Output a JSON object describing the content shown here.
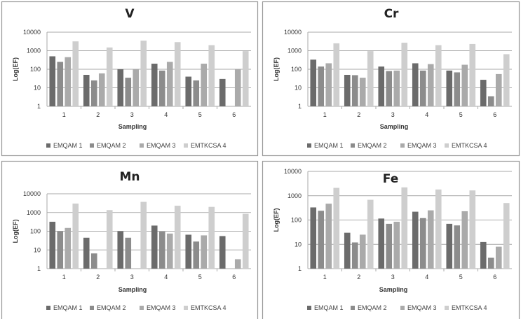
{
  "chart_data": [
    {
      "type": "bar",
      "title": "V",
      "xlabel": "Sampling",
      "ylabel": "Log(EF)",
      "yscale": "log",
      "ylim": [
        1,
        10000
      ],
      "yticks": [
        "1",
        "10",
        "100",
        "1000",
        "10000"
      ],
      "categories": [
        "1",
        "2",
        "3",
        "4",
        "5",
        "6"
      ],
      "legend_position": "bottom",
      "series": [
        {
          "name": "EMQAM 1",
          "values": [
            500,
            50,
            100,
            200,
            40,
            30
          ]
        },
        {
          "name": "EMQAM 2",
          "values": [
            250,
            25,
            35,
            85,
            25,
            null
          ]
        },
        {
          "name": "EMQAM 3",
          "values": [
            450,
            60,
            100,
            250,
            200,
            100
          ]
        },
        {
          "name": "EMTKCSA 4",
          "values": [
            3200,
            1500,
            3500,
            2900,
            2000,
            950
          ]
        }
      ]
    },
    {
      "type": "bar",
      "title": "Cr",
      "xlabel": "Sampling",
      "ylabel": "Log(EF)",
      "yscale": "log",
      "ylim": [
        1,
        10000
      ],
      "yticks": [
        "1",
        "10",
        "100",
        "1000",
        "10000"
      ],
      "categories": [
        "1",
        "2",
        "3",
        "4",
        "5",
        "6"
      ],
      "legend_position": "bottom",
      "series": [
        {
          "name": "EMQAM 1",
          "values": [
            330,
            50,
            140,
            210,
            85,
            27
          ]
        },
        {
          "name": "EMQAM 2",
          "values": [
            140,
            48,
            80,
            85,
            68,
            3.5
          ]
        },
        {
          "name": "EMQAM 3",
          "values": [
            210,
            35,
            85,
            190,
            175,
            55
          ]
        },
        {
          "name": "EMTKCSA 4",
          "values": [
            2500,
            950,
            2700,
            2000,
            2300,
            650
          ]
        }
      ]
    },
    {
      "type": "bar",
      "title": "Mn",
      "xlabel": "Sampling",
      "ylabel": "Log(EF)",
      "yscale": "log",
      "ylim": [
        1,
        10000
      ],
      "yticks": [
        "1",
        "10",
        "100",
        "1000",
        "10000"
      ],
      "categories": [
        "1",
        "2",
        "3",
        "4",
        "5",
        "6"
      ],
      "legend_position": "bottom",
      "series": [
        {
          "name": "EMQAM 1",
          "values": [
            320,
            45,
            100,
            200,
            65,
            55
          ]
        },
        {
          "name": "EMQAM 2",
          "values": [
            100,
            6.5,
            45,
            95,
            28,
            null
          ]
        },
        {
          "name": "EMQAM 3",
          "values": [
            150,
            null,
            null,
            75,
            60,
            3.2
          ]
        },
        {
          "name": "EMTKCSA 4",
          "values": [
            3000,
            1350,
            3700,
            2300,
            2000,
            850
          ]
        }
      ]
    },
    {
      "type": "bar",
      "title": "Fe",
      "xlabel": "Sampling",
      "ylabel": "Log(EF)",
      "yscale": "log",
      "ylim": [
        1,
        10000
      ],
      "yticks": [
        "1",
        "10",
        "100",
        "1000",
        "10000"
      ],
      "categories": [
        "1",
        "2",
        "3",
        "4",
        "5",
        "6"
      ],
      "legend_position": "bottom",
      "series": [
        {
          "name": "EMQAM 1",
          "values": [
            330,
            30,
            115,
            220,
            70,
            12.5
          ]
        },
        {
          "name": "EMQAM 2",
          "values": [
            240,
            12,
            70,
            120,
            60,
            2.8
          ]
        },
        {
          "name": "EMQAM 3",
          "values": [
            470,
            25,
            85,
            250,
            230,
            8
          ]
        },
        {
          "name": "EMTKCSA 4",
          "values": [
            2100,
            680,
            2200,
            1800,
            1650,
            500
          ]
        }
      ]
    }
  ],
  "colors": {
    "series": [
      "#6b6b6b",
      "#8c8c8c",
      "#aaaaaa",
      "#cecece"
    ],
    "grid": "#a9a9a9",
    "border": "#9a9a9a"
  }
}
